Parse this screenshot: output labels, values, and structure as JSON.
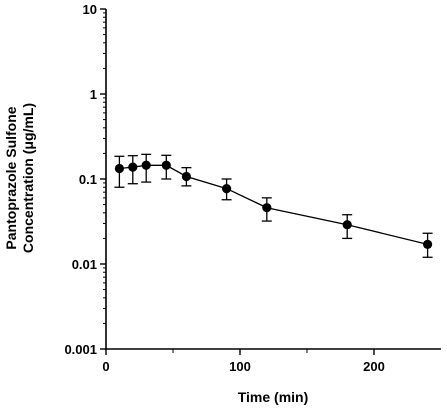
{
  "chart_data": {
    "type": "scatter",
    "xlabel": "Time (min)",
    "ylabel_line1": "Pantoprazole Sulfone",
    "ylabel_line2": "Concentration (μg/mL)",
    "xlim": [
      0,
      250
    ],
    "ylim": [
      0.001,
      10
    ],
    "yscale": "log",
    "x_ticks": [
      0,
      100,
      200
    ],
    "x_tick_labels": [
      "0",
      "100",
      "200"
    ],
    "y_ticks": [
      0.001,
      0.01,
      0.1,
      1,
      10
    ],
    "y_tick_labels": [
      "0.001",
      "0.01",
      "0.1",
      "1",
      "10"
    ],
    "grid": false,
    "line_color": "#000000",
    "marker_color": "#000000",
    "series": [
      {
        "x": [
          10,
          20,
          30,
          45,
          60,
          90,
          120,
          180,
          240
        ],
        "y": [
          0.133,
          0.138,
          0.145,
          0.145,
          0.107,
          0.077,
          0.046,
          0.029,
          0.017
        ],
        "y_lower": [
          0.08,
          0.088,
          0.092,
          0.1,
          0.083,
          0.057,
          0.032,
          0.02,
          0.012
        ],
        "y_upper": [
          0.185,
          0.188,
          0.195,
          0.19,
          0.136,
          0.1,
          0.06,
          0.038,
          0.023
        ]
      }
    ]
  }
}
